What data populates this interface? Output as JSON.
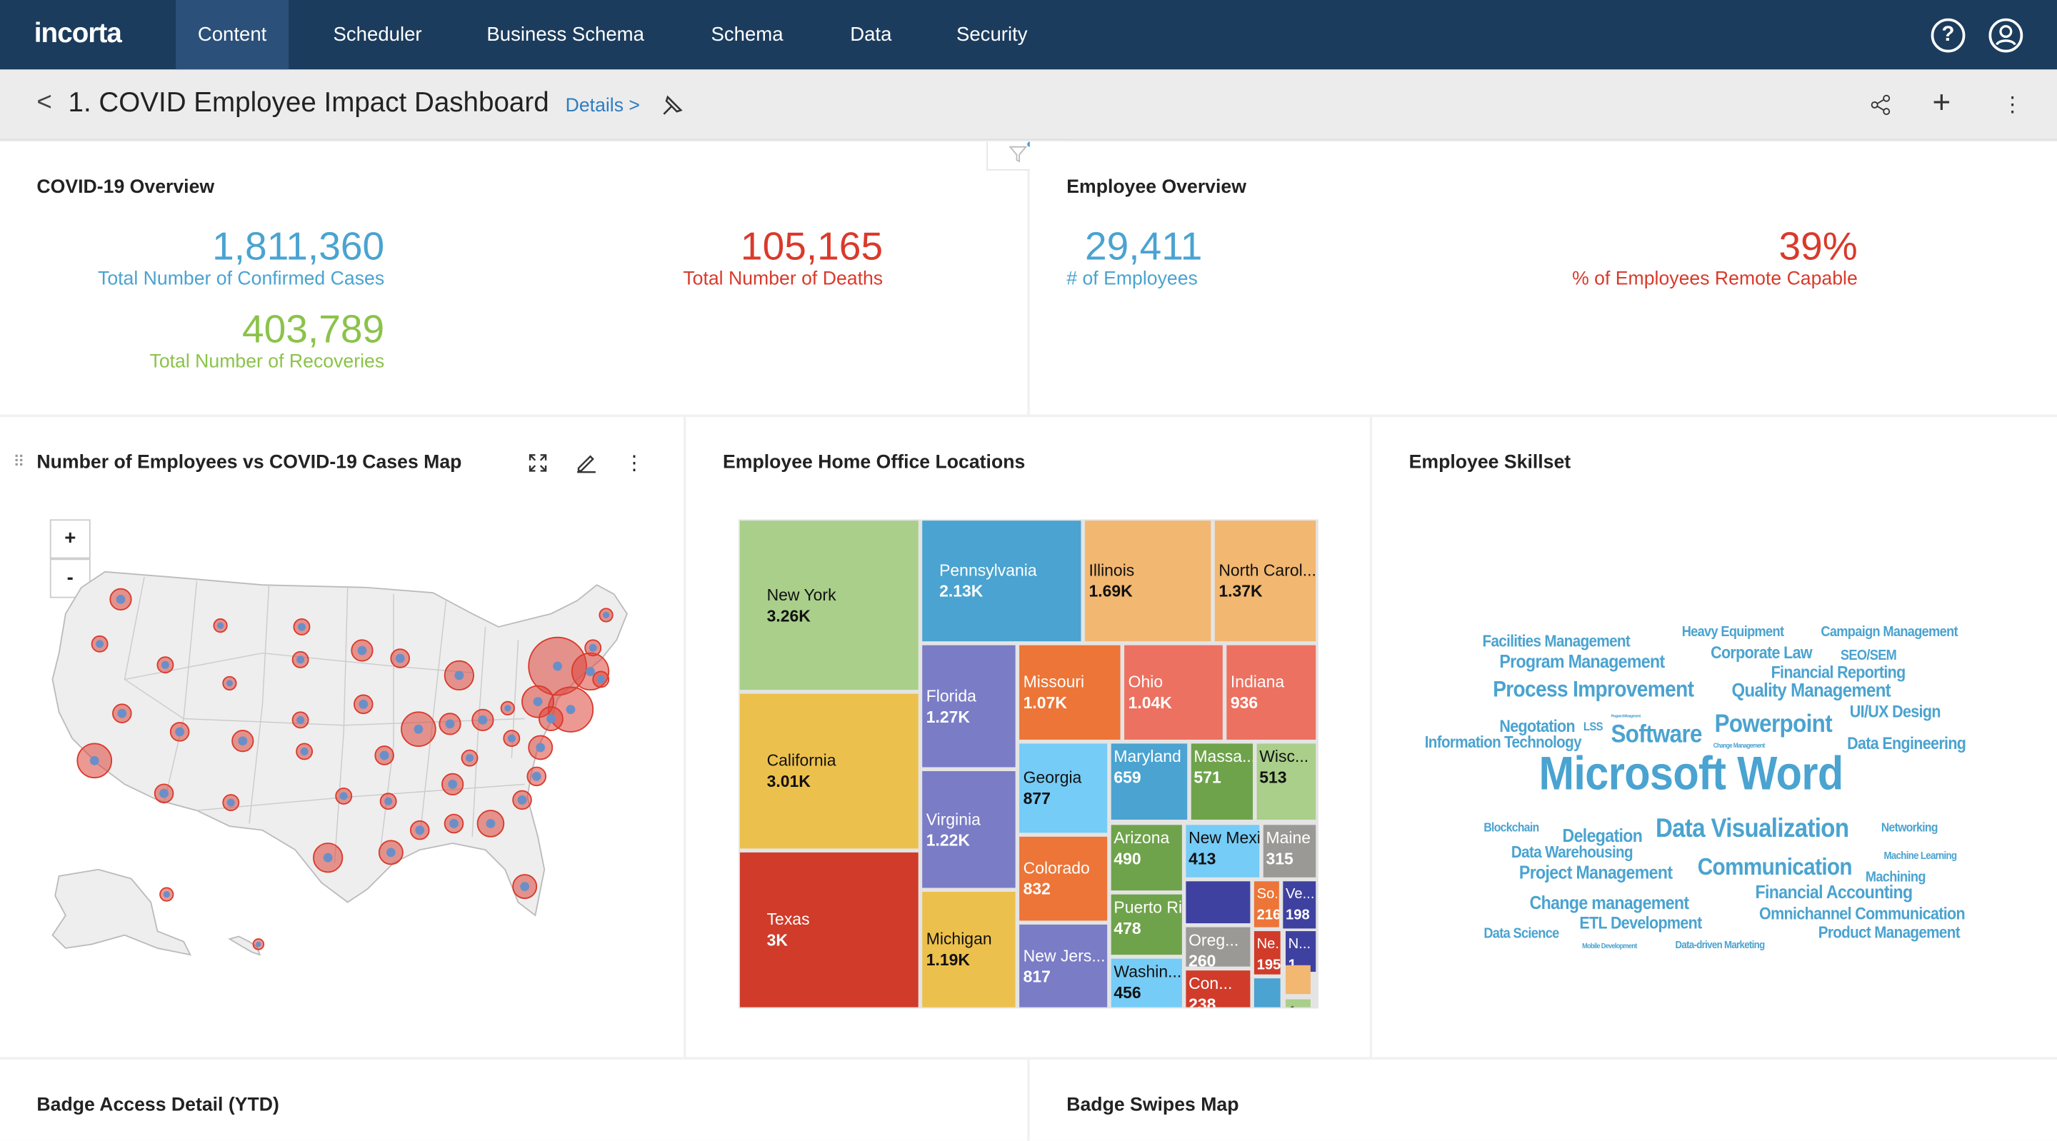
{
  "nav": {
    "logo": "incorta",
    "tabs": [
      {
        "label": "Content",
        "active": true
      },
      {
        "label": "Scheduler"
      },
      {
        "label": "Business Schema"
      },
      {
        "label": "Schema"
      },
      {
        "label": "Data"
      },
      {
        "label": "Security"
      }
    ],
    "help_icon": "?",
    "user_icon": "user-circle"
  },
  "header": {
    "back": "<",
    "title": "1. COVID Employee Impact Dashboard",
    "details": "Details >",
    "pin_icon": "pin",
    "share_icon": "share",
    "add": "+",
    "more": "⋮"
  },
  "covid": {
    "title": "COVID-19 Overview",
    "confirmed": {
      "value": "1,811,360",
      "label": "Total Number of Confirmed Cases"
    },
    "deaths": {
      "value": "105,165",
      "label": "Total Number of Deaths"
    },
    "recoveries": {
      "value": "403,789",
      "label": "Total Number of Recoveries"
    }
  },
  "employee": {
    "title": "Employee Overview",
    "count": {
      "value": "29,411",
      "label": "# of Employees"
    },
    "remote": {
      "value": "39%",
      "label": "% of Employees Remote Capable"
    }
  },
  "colors": {
    "blue": "#4aa3d0",
    "red": "#d93a2b",
    "green": "#8bc34a",
    "nav": "#1c3c5d"
  },
  "map": {
    "title": "Number of Employees vs COVID-19 Cases Map",
    "zoom_in": "+",
    "zoom_out": "-"
  },
  "treemap": {
    "title": "Employee Home Office Locations",
    "cells": [
      {
        "label": "New York",
        "value": "3.26K",
        "color": "#a9cf8a"
      },
      {
        "label": "California",
        "value": "3.01K",
        "color": "#ecc04d"
      },
      {
        "label": "Texas",
        "value": "3K",
        "color": "#d03b2a"
      },
      {
        "label": "Pennsylvania",
        "value": "2.13K",
        "color": "#4aa3d0"
      },
      {
        "label": "Illinois",
        "value": "1.69K",
        "color": "#f2b771"
      },
      {
        "label": "North Carol...",
        "value": "1.37K",
        "color": "#f2b771"
      },
      {
        "label": "Florida",
        "value": "1.27K",
        "color": "#7a7cc6"
      },
      {
        "label": "Virginia",
        "value": "1.22K",
        "color": "#7a7cc6"
      },
      {
        "label": "Michigan",
        "value": "1.19K",
        "color": "#ecc04d"
      },
      {
        "label": "Missouri",
        "value": "1.07K",
        "color": "#ec7537"
      },
      {
        "label": "Ohio",
        "value": "1.04K",
        "color": "#ec7160"
      },
      {
        "label": "Indiana",
        "value": "936",
        "color": "#ec7160"
      },
      {
        "label": "Georgia",
        "value": "877",
        "color": "#75ccf6"
      },
      {
        "label": "Colorado",
        "value": "832",
        "color": "#ec7537"
      },
      {
        "label": "New Jers...",
        "value": "817",
        "color": "#7a7cc6"
      },
      {
        "label": "Maryland",
        "value": "659",
        "color": "#4aa3d0"
      },
      {
        "label": "Massa...",
        "value": "571",
        "color": "#6fa34b"
      },
      {
        "label": "Wisc...",
        "value": "513",
        "color": "#a9cf8a"
      },
      {
        "label": "Arizona",
        "value": "490",
        "color": "#6fa34b"
      },
      {
        "label": "New Mexico",
        "value": "413",
        "color": "#75ccf6"
      },
      {
        "label": "Maine",
        "value": "315",
        "color": "#9a9996"
      },
      {
        "label": "Puerto Rico",
        "value": "478",
        "color": "#6fa34b"
      },
      {
        "label": "Washin...",
        "value": "456",
        "color": "#75ccf6"
      },
      {
        "label": "",
        "value": "",
        "color": "#3f41a0"
      },
      {
        "label": "Oreg...",
        "value": "260",
        "color": "#9a9996"
      },
      {
        "label": "Con...",
        "value": "238",
        "color": "#d03b2a"
      },
      {
        "label": "So...",
        "value": "216",
        "color": "#ec7537"
      },
      {
        "label": "Ve...",
        "value": "198",
        "color": "#3f41a0"
      },
      {
        "label": "Ne...",
        "value": "195",
        "color": "#d03b2a"
      },
      {
        "label": "N...",
        "value": "1...",
        "color": "#3f41a0"
      },
      {
        "label": "",
        "value": "",
        "color": "#4aa3d0"
      },
      {
        "label": "",
        "value": "",
        "color": "#f2b771"
      },
      {
        "label": "",
        "value": "1...",
        "color": "#a9cf8a"
      }
    ]
  },
  "skills": {
    "title": "Employee Skillset",
    "words": [
      "Facilities Management",
      "Heavy Equipment",
      "Campaign Management",
      "Program Management",
      "Corporate Law",
      "SEO/SEM",
      "Financial Reporting",
      "Process Improvement",
      "Quality Management",
      "UI/UX Design",
      "Program MAnagement",
      "Negotation",
      "LSS",
      "Powerpoint",
      "Information Technology",
      "Software",
      "Change Management",
      "Data Engineering",
      "Microsoft Word",
      "Blockchain",
      "Delegation",
      "Data Visualization",
      "Networking",
      "Data Warehousing",
      "Machine Learning",
      "Project Management",
      "Communication",
      "Machining",
      "Financial Accounting",
      "Change management",
      "Omnichannel Communication",
      "ETL Development",
      "Data Science",
      "Product Management",
      "Mobile Development",
      "Data-driven Marketing"
    ]
  },
  "bottom": {
    "badge_access": "Badge Access Detail (YTD)",
    "badge_swipes": "Badge Swipes Map"
  }
}
